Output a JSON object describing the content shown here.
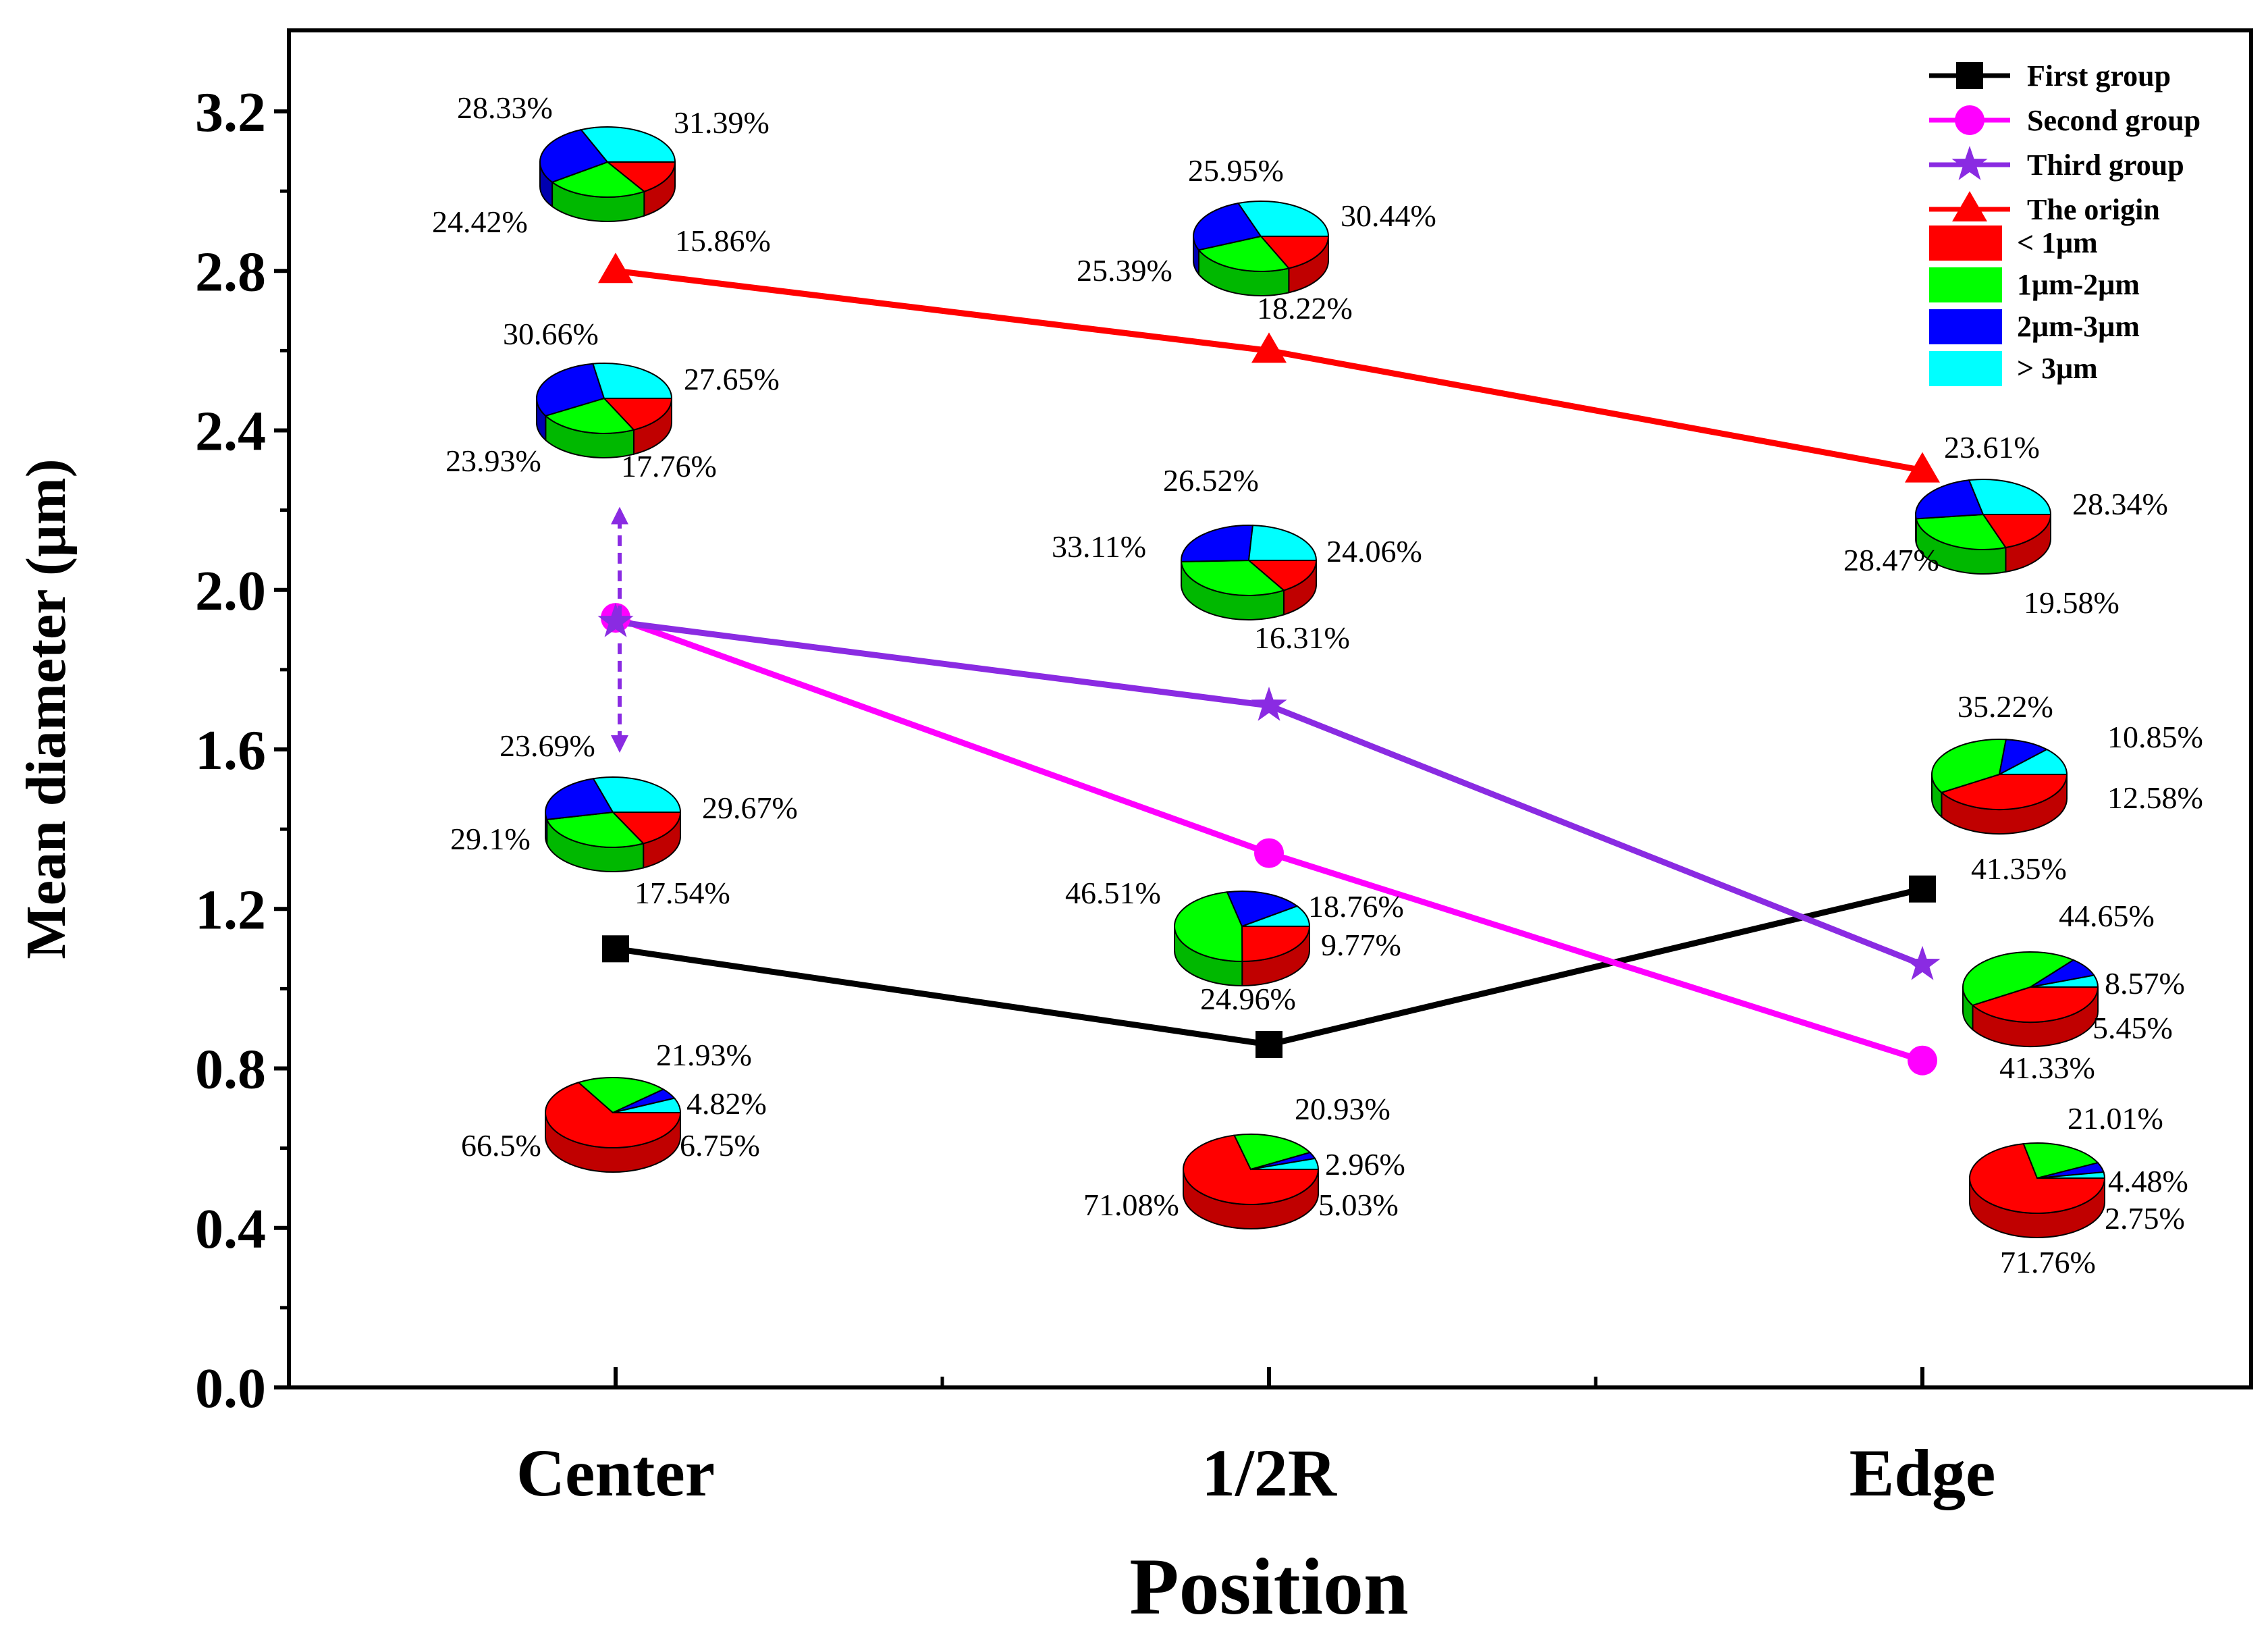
{
  "chart_data": {
    "type": "line",
    "xlabel": "Position",
    "ylabel": "Mean diameter (μm)",
    "categories": [
      "Center",
      "1/2R",
      "Edge"
    ],
    "ylim": [
      0,
      3.3
    ],
    "yticks": [
      0.0,
      0.4,
      0.8,
      1.2,
      1.6,
      2.0,
      2.4,
      2.8,
      3.2
    ],
    "ytick_labels": [
      "0.0",
      "0.4",
      "0.8",
      "1.2",
      "1.6",
      "2.0",
      "2.4",
      "2.8",
      "3.2"
    ],
    "series": [
      {
        "name": "First group",
        "color": "#000000",
        "marker": "square",
        "values": [
          1.1,
          0.86,
          1.25
        ]
      },
      {
        "name": "Second group",
        "color": "#ff00ff",
        "marker": "circle",
        "values": [
          1.93,
          1.34,
          0.82
        ]
      },
      {
        "name": "Third group",
        "color": "#8a2be2",
        "marker": "star",
        "values": [
          1.92,
          1.71,
          1.06
        ]
      },
      {
        "name": "The origin",
        "color": "#ff0000",
        "marker": "triangle",
        "values": [
          2.8,
          2.6,
          2.3
        ]
      }
    ],
    "pie_legend": [
      {
        "label": "< 1μm",
        "color": "#ff0000"
      },
      {
        "label": "1μm-2μm",
        "color": "#00ff00"
      },
      {
        "label": "2μm-3μm",
        "color": "#0000ff"
      },
      {
        "label": "> 3μm",
        "color": "#00ffff"
      }
    ],
    "annotations": {
      "arrow_from": 2.2,
      "arrow_to": 1.6,
      "arrow_color": "#8a2be2"
    },
    "pies": [
      {
        "group": "The origin",
        "position": "Center",
        "values": [
          15.86,
          24.42,
          28.33,
          31.39
        ],
        "labels": [
          "15.86%",
          "24.42%",
          "28.33%",
          "31.39%"
        ]
      },
      {
        "group": "The origin",
        "position": "1/2R",
        "values": [
          18.22,
          25.39,
          25.95,
          30.44
        ],
        "labels": [
          "18.22%",
          "25.39%",
          "25.95%",
          "30.44%"
        ]
      },
      {
        "group": "The origin",
        "position": "Edge",
        "values": [
          19.58,
          28.47,
          23.61,
          28.34
        ],
        "labels": [
          "19.58%",
          "28.47%",
          "23.61%",
          "28.34%"
        ]
      },
      {
        "group": "Third group",
        "position": "Center",
        "values": [
          17.76,
          23.93,
          30.66,
          27.65
        ],
        "labels": [
          "17.76%",
          "23.93%",
          "30.66%",
          "27.65%"
        ]
      },
      {
        "group": "Third group",
        "position": "1/2R",
        "values": [
          16.31,
          33.11,
          26.52,
          24.06
        ],
        "labels": [
          "16.31%",
          "33.11%",
          "26.52%",
          "24.06%"
        ]
      },
      {
        "group": "Third group",
        "position": "Edge",
        "values": [
          41.35,
          35.22,
          10.85,
          12.58
        ],
        "labels": [
          "41.35%",
          "35.22%",
          "10.85%",
          "12.58%"
        ]
      },
      {
        "group": "Second group",
        "position": "Center",
        "values": [
          17.54,
          29.1,
          23.69,
          29.67
        ],
        "labels": [
          "17.54%",
          "29.1%",
          "23.69%",
          "29.67%"
        ]
      },
      {
        "group": "Second group",
        "position": "1/2R",
        "values": [
          24.96,
          46.51,
          18.76,
          9.77
        ],
        "labels": [
          "24.96%",
          "46.51%",
          "18.76%",
          "9.77%"
        ]
      },
      {
        "group": "Second group",
        "position": "Edge",
        "values": [
          41.33,
          44.65,
          8.57,
          5.45
        ],
        "labels": [
          "41.33%",
          "44.65%",
          "8.57%",
          "5.45%"
        ]
      },
      {
        "group": "First group",
        "position": "Center",
        "values": [
          66.5,
          21.93,
          4.82,
          6.75
        ],
        "labels": [
          "66.5%",
          "21.93%",
          "4.82%",
          "6.75%"
        ]
      },
      {
        "group": "First group",
        "position": "1/2R",
        "values": [
          71.08,
          20.93,
          2.96,
          5.03
        ],
        "labels": [
          "71.08%",
          "20.93%",
          "2.96%",
          "5.03%"
        ]
      },
      {
        "group": "First group",
        "position": "Edge",
        "values": [
          71.76,
          21.01,
          4.48,
          2.75
        ],
        "labels": [
          "71.76%",
          "21.01%",
          "4.48%",
          "2.75%"
        ]
      }
    ]
  }
}
